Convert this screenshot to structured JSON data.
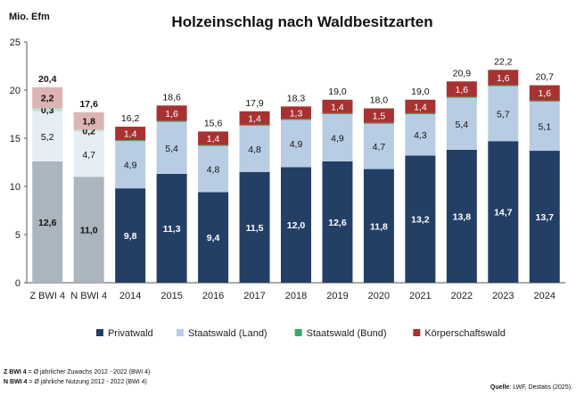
{
  "chart_data": {
    "type": "stacked-bar",
    "title": "Holzeinschlag nach Waldbesitzarten",
    "ylabel": "Mio. Efm",
    "ylim": [
      0,
      25
    ],
    "yticks": [
      0,
      5,
      10,
      15,
      20,
      25
    ],
    "grid": false,
    "legend_position": "bottom",
    "categories": [
      "Z BWI 4",
      "N BWI 4",
      "2014",
      "2015",
      "2016",
      "2017",
      "2018",
      "2019",
      "2020",
      "2021",
      "2022",
      "2023",
      "2024"
    ],
    "value_labels": {
      "privatwald": [
        "12,6",
        "11,0",
        "9,8",
        "11,3",
        "9,4",
        "11,5",
        "12,0",
        "12,6",
        "11,8",
        "13,2",
        "13,8",
        "14,7",
        "13,7"
      ],
      "staatswald_land": [
        "5,2",
        "4,7",
        "4,9",
        "5,4",
        "4,8",
        "4,8",
        "4,9",
        "4,9",
        "4,7",
        "4,3",
        "5,4",
        "5,7",
        "5,1"
      ],
      "staatswald_bund": [
        "0,3",
        "0,2",
        "",
        "",
        "",
        "",
        "",
        "",
        "",
        "",
        "",
        "",
        ""
      ],
      "koerperschaftswald": [
        "2,2",
        "1,8",
        "1,4",
        "1,6",
        "1,4",
        "1,4",
        "1,3",
        "1,4",
        "1,5",
        "1,4",
        "1,6",
        "1,6",
        "1,6"
      ]
    },
    "totals": [
      "20,4",
      "17,6",
      "16,2",
      "18,6",
      "15,6",
      "17,9",
      "18,3",
      "19,0",
      "18,0",
      "19,0",
      "20,9",
      "22,2",
      "20,7"
    ],
    "series": [
      {
        "key": "privatwald",
        "name": "Privatwald",
        "color": "#243f66",
        "light_color": "#abb5be",
        "values": [
          12.6,
          11.0,
          9.8,
          11.3,
          9.4,
          11.5,
          12.0,
          12.6,
          11.8,
          13.2,
          13.8,
          14.7,
          13.7
        ]
      },
      {
        "key": "staatswald_land",
        "name": "Staatswald (Land)",
        "color": "#b8cde4",
        "light_color": "#e6edf5",
        "values": [
          5.2,
          4.7,
          4.9,
          5.4,
          4.8,
          4.8,
          4.9,
          4.9,
          4.7,
          4.3,
          5.4,
          5.7,
          5.1
        ]
      },
      {
        "key": "staatswald_bund",
        "name": "Staatswald (Bund)",
        "color": "#3aa86b",
        "light_color": "#bfe3cc",
        "values": [
          0.3,
          0.2,
          0.1,
          0.1,
          0.1,
          0.1,
          0.1,
          0.1,
          0.1,
          0.1,
          0.1,
          0.1,
          0.1
        ]
      },
      {
        "key": "koerperschaftswald",
        "name": "Körperschaftswald",
        "color": "#a83232",
        "light_color": "#dcb4b4",
        "values": [
          2.2,
          1.8,
          1.4,
          1.6,
          1.4,
          1.4,
          1.3,
          1.4,
          1.5,
          1.4,
          1.6,
          1.6,
          1.6
        ]
      }
    ],
    "highlight_categories": [
      "Z BWI 4",
      "N BWI 4"
    ]
  },
  "footnotes": [
    {
      "bold": "Z BWI 4",
      "text": " = Ø jährlicher Zuwachs 2012 - 2022 (BWI 4)"
    },
    {
      "bold": "N BWI 4",
      "text": " = Ø jährliche Nutzung 2012 - 2022 (BWI 4)"
    }
  ],
  "source": {
    "label": "Quelle",
    "text": ": LWF, Destatis (2025)."
  }
}
